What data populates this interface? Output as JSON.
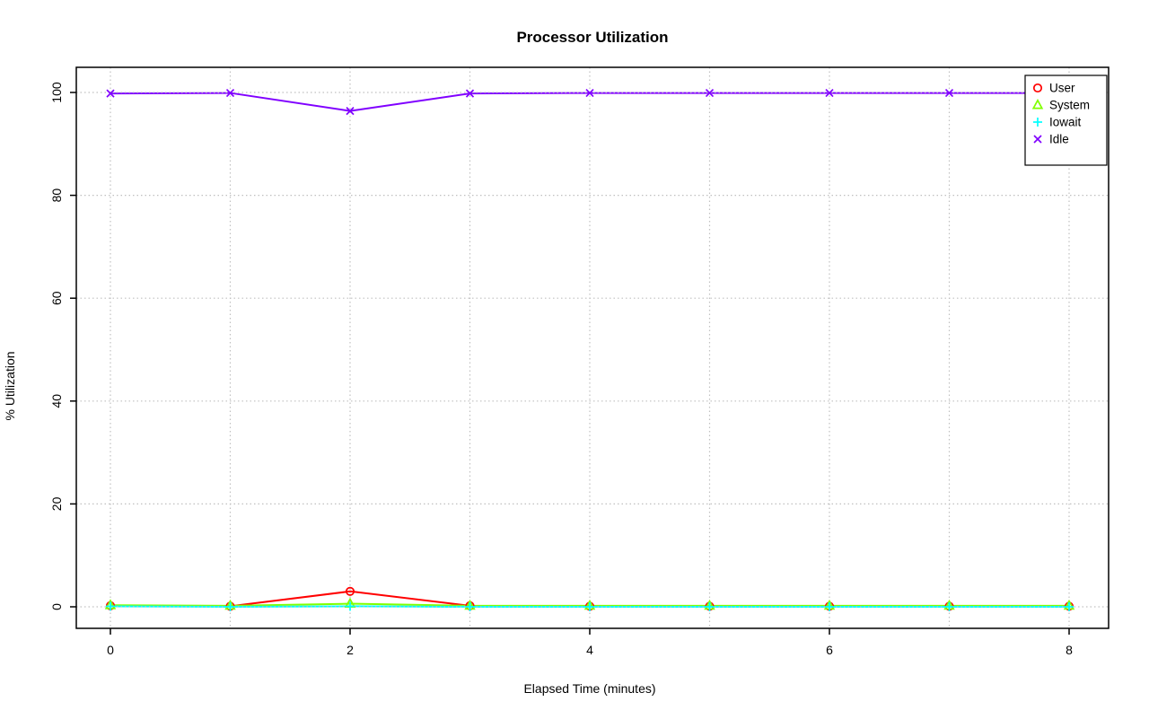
{
  "chart_data": {
    "type": "line",
    "title": "Processor Utilization",
    "xlabel": "Elapsed Time (minutes)",
    "ylabel": "% Utilization",
    "x": [
      0,
      1,
      2,
      3,
      4,
      5,
      6,
      7,
      8
    ],
    "xlim": [
      0,
      8
    ],
    "ylim": [
      0,
      100
    ],
    "xticks": [
      0,
      2,
      4,
      6,
      8
    ],
    "yticks": [
      0,
      20,
      40,
      60,
      80,
      100
    ],
    "grid": true,
    "grid_x": [
      0,
      1,
      2,
      3,
      4,
      5,
      6,
      7,
      8
    ],
    "grid_color": "#c0c0c0",
    "legend_position": "top-right",
    "series": [
      {
        "name": "User",
        "color": "#FF0000",
        "marker": "circle",
        "values": [
          0.2,
          0.1,
          3.0,
          0.2,
          0.1,
          0.1,
          0.1,
          0.1,
          0.1
        ]
      },
      {
        "name": "System",
        "color": "#80FF00",
        "marker": "triangle",
        "values": [
          0.3,
          0.2,
          0.6,
          0.2,
          0.2,
          0.2,
          0.2,
          0.2,
          0.2
        ]
      },
      {
        "name": "Iowait",
        "color": "#00FFFF",
        "marker": "plus",
        "values": [
          0.1,
          0.0,
          0.1,
          0.0,
          0.0,
          0.0,
          0.0,
          0.0,
          0.0
        ]
      },
      {
        "name": "Idle",
        "color": "#8000FF",
        "marker": "x",
        "values": [
          99.8,
          99.9,
          96.4,
          99.8,
          99.9,
          99.9,
          99.9,
          99.9,
          99.9
        ]
      }
    ]
  }
}
